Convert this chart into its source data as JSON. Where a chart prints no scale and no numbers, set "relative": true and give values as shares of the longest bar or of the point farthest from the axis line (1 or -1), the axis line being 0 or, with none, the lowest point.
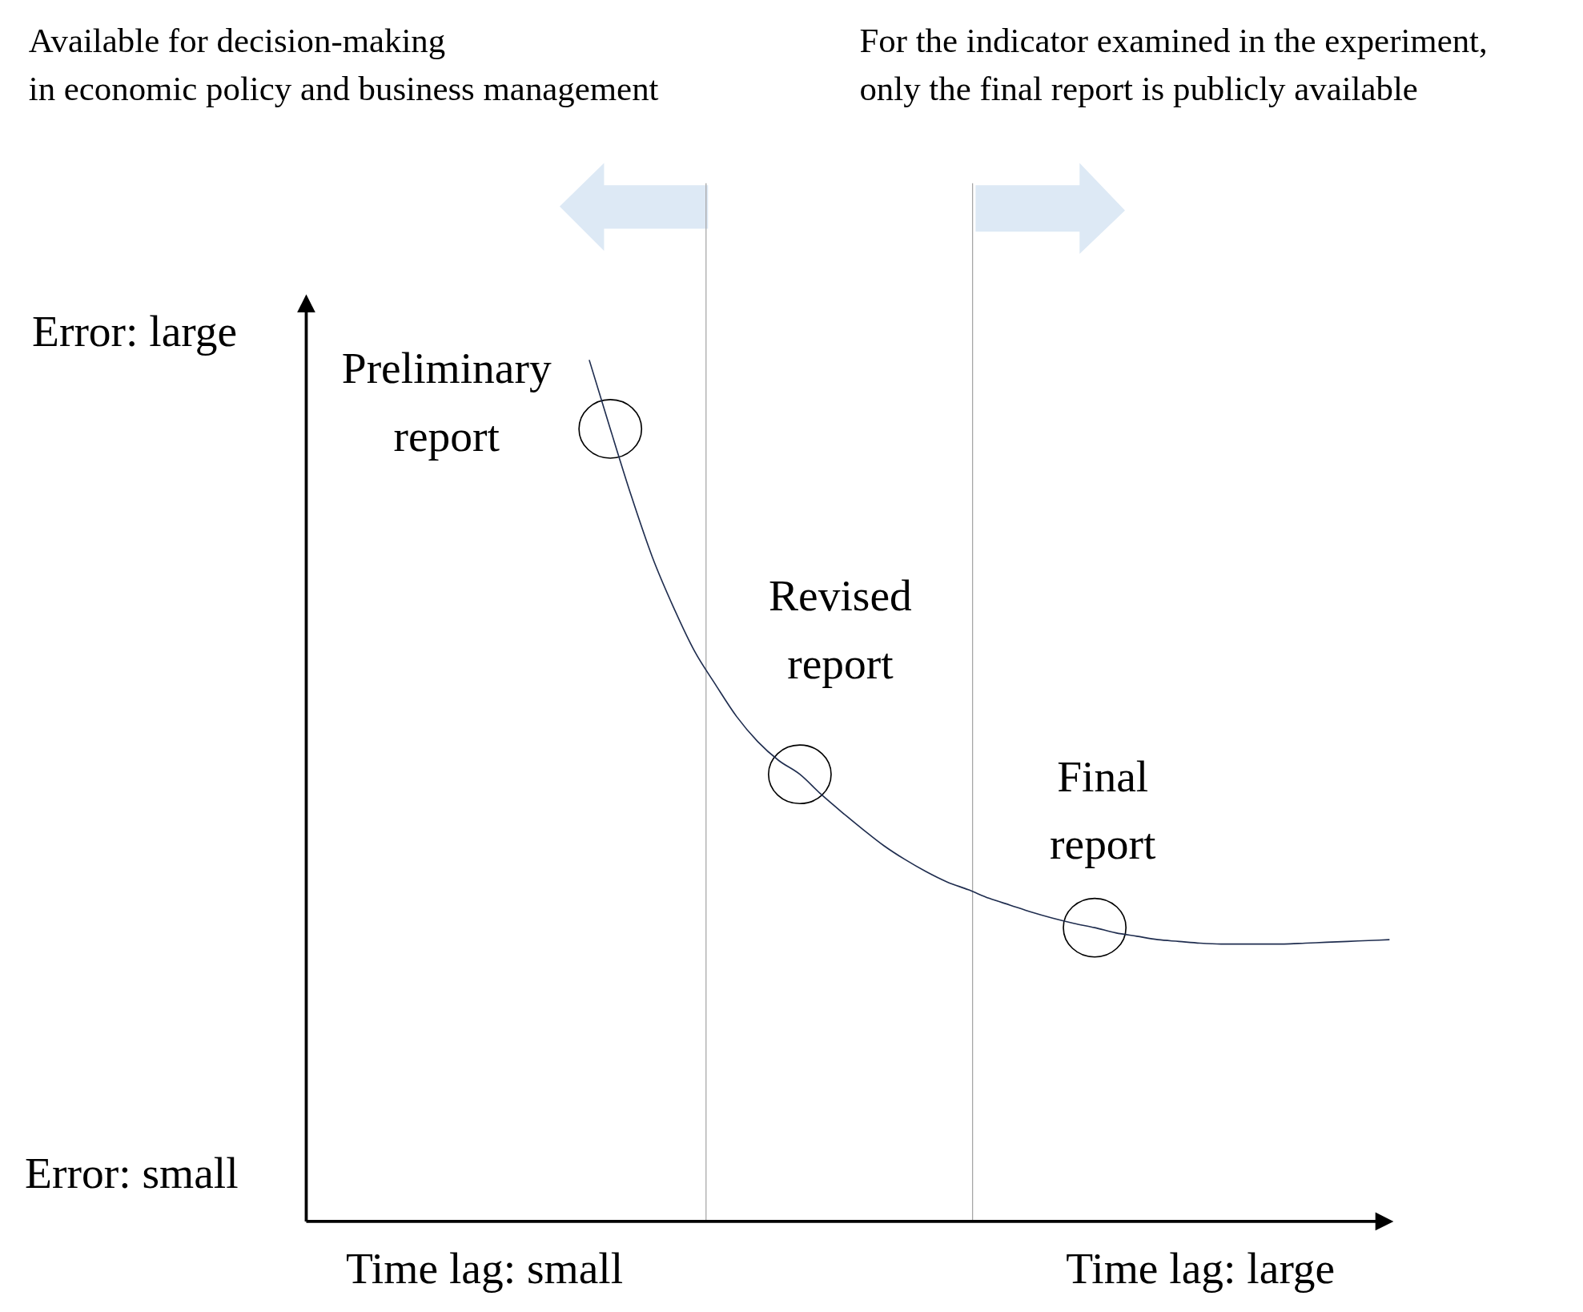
{
  "chart_data": {
    "type": "line",
    "relative": true,
    "categories": [
      "Time lag: small",
      null,
      null,
      null,
      null,
      null,
      null,
      null,
      null,
      null,
      null,
      null,
      null,
      null,
      null,
      null,
      null,
      null,
      null,
      null,
      null,
      null,
      null,
      null,
      null,
      null,
      null,
      null,
      null,
      null,
      null,
      null,
      null,
      null,
      "Time lag: large",
      null,
      null,
      null,
      null,
      null,
      null,
      null,
      null,
      null
    ],
    "series": [
      {
        "color": "#1f2d4f",
        "values": [
          null,
          null,
          null,
          null,
          null,
          1.0,
          0.92,
          0.842,
          0.771,
          0.713,
          0.662,
          0.623,
          0.586,
          0.557,
          0.535,
          0.519,
          0.496,
          0.475,
          0.455,
          0.436,
          0.42,
          0.406,
          0.394,
          0.385,
          0.375,
          0.367,
          0.359,
          0.352,
          0.346,
          0.341,
          0.335,
          0.331,
          0.327,
          0.325,
          0.323,
          0.322,
          0.322,
          0.322,
          0.322,
          0.323,
          0.324,
          0.325,
          0.326,
          0.327
        ]
      },
      {
        "type": "scatter",
        "color": "#000000",
        "marker": "circle",
        "values": [
          null,
          null,
          null,
          null,
          null,
          null,
          0.92,
          null,
          null,
          null,
          null,
          null,
          null,
          null,
          null,
          0.519,
          null,
          null,
          null,
          null,
          null,
          null,
          null,
          null,
          null,
          null,
          null,
          null,
          null,
          0.341,
          null,
          null,
          null,
          null,
          null,
          null,
          null,
          null,
          null,
          null,
          null,
          null,
          null,
          null
        ]
      }
    ],
    "annotations": [
      "Available for decision-making\nin economic policy and business management",
      "For the indicator examined in the experiment,\nonly the final report is publicly available",
      "Preliminary\nreport",
      "Revised\nreport",
      "Final\nreport",
      "Error: large",
      "Error: small"
    ]
  }
}
